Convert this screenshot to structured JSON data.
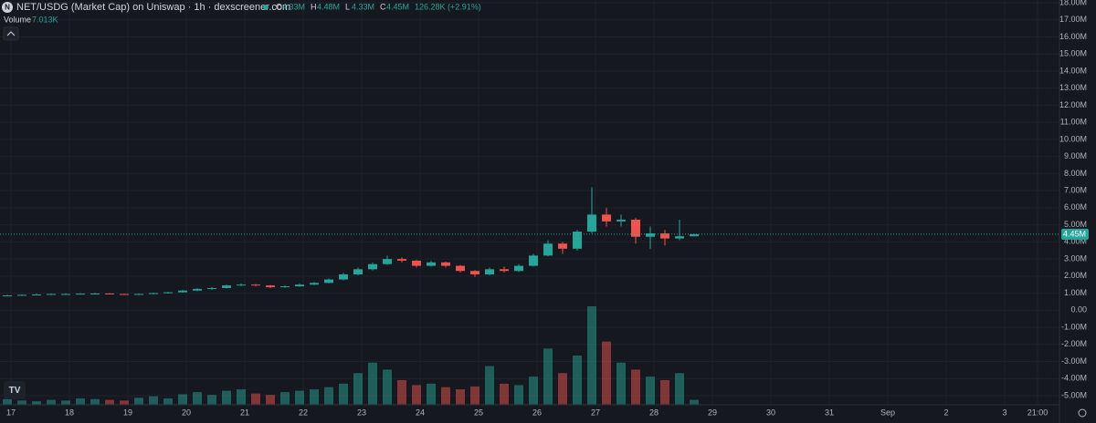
{
  "chart_data": {
    "type": "candlestick",
    "title": "NET/USDG (Market Cap) on Uniswap · 1h · dexscreener.com",
    "ohlc": [
      {
        "key": "O",
        "value": "4.33M"
      },
      {
        "key": "H",
        "value": "4.48M"
      },
      {
        "key": "L",
        "value": "4.33M"
      },
      {
        "key": "C",
        "value": "4.45M"
      }
    ],
    "change": "126.28K (+2.91%)",
    "up_color": "#26a69a",
    "down_color": "#ef5350",
    "open": [
      0.85,
      0.87,
      0.9,
      0.92,
      0.95,
      0.95,
      0.97,
      0.98,
      0.95,
      0.92,
      0.95,
      1.0,
      1.05,
      1.15,
      1.25,
      1.3,
      1.45,
      1.5,
      1.45,
      1.35,
      1.4,
      1.5,
      1.6,
      1.8,
      2.1,
      2.4,
      2.7,
      3.0,
      2.9,
      2.6,
      2.8,
      2.6,
      2.3,
      2.1,
      2.4,
      2.3,
      2.6,
      3.2,
      3.9,
      3.6,
      4.6,
      5.6,
      5.2,
      5.3,
      4.3,
      4.5,
      4.2,
      4.33
    ],
    "high": [
      0.9,
      0.93,
      0.96,
      0.98,
      0.99,
      1.0,
      1.02,
      1.0,
      0.97,
      0.98,
      1.03,
      1.08,
      1.19,
      1.3,
      1.36,
      1.5,
      1.56,
      1.53,
      1.48,
      1.45,
      1.55,
      1.66,
      1.86,
      2.18,
      2.5,
      2.8,
      3.2,
      3.1,
      2.95,
      2.9,
      2.85,
      2.65,
      2.35,
      2.5,
      2.55,
      2.7,
      3.3,
      4.1,
      4.0,
      4.7,
      7.2,
      6.0,
      5.6,
      5.4,
      4.9,
      4.7,
      5.3,
      4.48
    ],
    "low": [
      0.83,
      0.85,
      0.88,
      0.9,
      0.92,
      0.93,
      0.95,
      0.93,
      0.9,
      0.9,
      0.94,
      0.98,
      1.03,
      1.12,
      1.2,
      1.28,
      1.42,
      1.4,
      1.3,
      1.32,
      1.38,
      1.47,
      1.57,
      1.76,
      2.05,
      2.33,
      2.65,
      2.8,
      2.5,
      2.55,
      2.5,
      2.2,
      1.95,
      2.05,
      2.2,
      2.25,
      2.55,
      3.15,
      3.3,
      3.5,
      4.5,
      4.9,
      4.9,
      3.9,
      3.6,
      3.8,
      4.1,
      4.33
    ],
    "close": [
      0.87,
      0.9,
      0.92,
      0.95,
      0.95,
      0.97,
      0.98,
      0.95,
      0.92,
      0.95,
      1.0,
      1.05,
      1.15,
      1.25,
      1.3,
      1.45,
      1.5,
      1.45,
      1.35,
      1.4,
      1.5,
      1.6,
      1.8,
      2.1,
      2.4,
      2.7,
      3.0,
      2.9,
      2.6,
      2.8,
      2.6,
      2.3,
      2.1,
      2.4,
      2.3,
      2.6,
      3.2,
      3.9,
      3.6,
      4.6,
      5.6,
      5.2,
      5.3,
      4.3,
      4.5,
      4.2,
      4.33,
      4.45
    ],
    "volume": {
      "name": "Volume",
      "last_label": "7.013K",
      "values": [
        8,
        6,
        5,
        7,
        6,
        9,
        8,
        7,
        6,
        10,
        12,
        9,
        15,
        18,
        14,
        20,
        22,
        16,
        14,
        18,
        20,
        22,
        25,
        30,
        45,
        60,
        50,
        35,
        28,
        30,
        25,
        22,
        26,
        55,
        30,
        28,
        40,
        80,
        45,
        70,
        140,
        90,
        60,
        50,
        40,
        35,
        45,
        7.013
      ]
    },
    "ylim": [
      -5,
      18
    ],
    "yticks": [
      {
        "value": 18,
        "label": "18.00M"
      },
      {
        "value": 17,
        "label": "17.00M"
      },
      {
        "value": 16,
        "label": "16.00M"
      },
      {
        "value": 15,
        "label": "15.00M"
      },
      {
        "value": 14,
        "label": "14.00M"
      },
      {
        "value": 13,
        "label": "13.00M"
      },
      {
        "value": 12,
        "label": "12.00M"
      },
      {
        "value": 11,
        "label": "11.00M"
      },
      {
        "value": 10,
        "label": "10.00M"
      },
      {
        "value": 9,
        "label": "9.00M"
      },
      {
        "value": 8,
        "label": "8.00M"
      },
      {
        "value": 7,
        "label": "7.00M"
      },
      {
        "value": 6,
        "label": "6.00M"
      },
      {
        "value": 5,
        "label": "5.00M"
      },
      {
        "value": 4,
        "label": "4.00M"
      },
      {
        "value": 3,
        "label": "3.00M"
      },
      {
        "value": 2,
        "label": "2.00M"
      },
      {
        "value": 1,
        "label": "1.00M"
      },
      {
        "value": 0,
        "label": "0.00"
      },
      {
        "value": -1,
        "label": "-1.00M"
      },
      {
        "value": -2,
        "label": "-2.00M"
      },
      {
        "value": -3,
        "label": "-3.00M"
      },
      {
        "value": -4,
        "label": "-4.00M"
      },
      {
        "value": -5,
        "label": "-5.00M"
      }
    ],
    "xticks": [
      {
        "value": 0.75,
        "label": "17"
      },
      {
        "value": 4.75,
        "label": "18"
      },
      {
        "value": 8.75,
        "label": "19"
      },
      {
        "value": 12.75,
        "label": "20"
      },
      {
        "value": 16.75,
        "label": "21"
      },
      {
        "value": 20.75,
        "label": "22"
      },
      {
        "value": 24.75,
        "label": "23"
      },
      {
        "value": 28.75,
        "label": "24"
      },
      {
        "value": 32.75,
        "label": "25"
      },
      {
        "value": 36.75,
        "label": "26"
      },
      {
        "value": 40.75,
        "label": "27"
      },
      {
        "value": 44.75,
        "label": "28"
      },
      {
        "value": 48.75,
        "label": "29"
      },
      {
        "value": 52.75,
        "label": "30"
      },
      {
        "value": 56.75,
        "label": "31"
      },
      {
        "value": 60.75,
        "label": "Sep"
      },
      {
        "value": 64.75,
        "label": "2"
      },
      {
        "value": 68.75,
        "label": "3"
      },
      {
        "value": 71,
        "label": "21:00"
      }
    ],
    "grid": true
  }
}
